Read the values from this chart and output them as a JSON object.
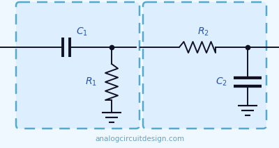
{
  "bg_color": "#f0f8ff",
  "box_fill": "#ddeeff",
  "box_edge": "#55aacc",
  "line_color": "#111122",
  "label_color": "#2255aa",
  "watermark": "analogcircuitdesign.com",
  "watermark_color": "#5599bb",
  "fig_w": 4.0,
  "fig_h": 2.13,
  "dpi": 100
}
